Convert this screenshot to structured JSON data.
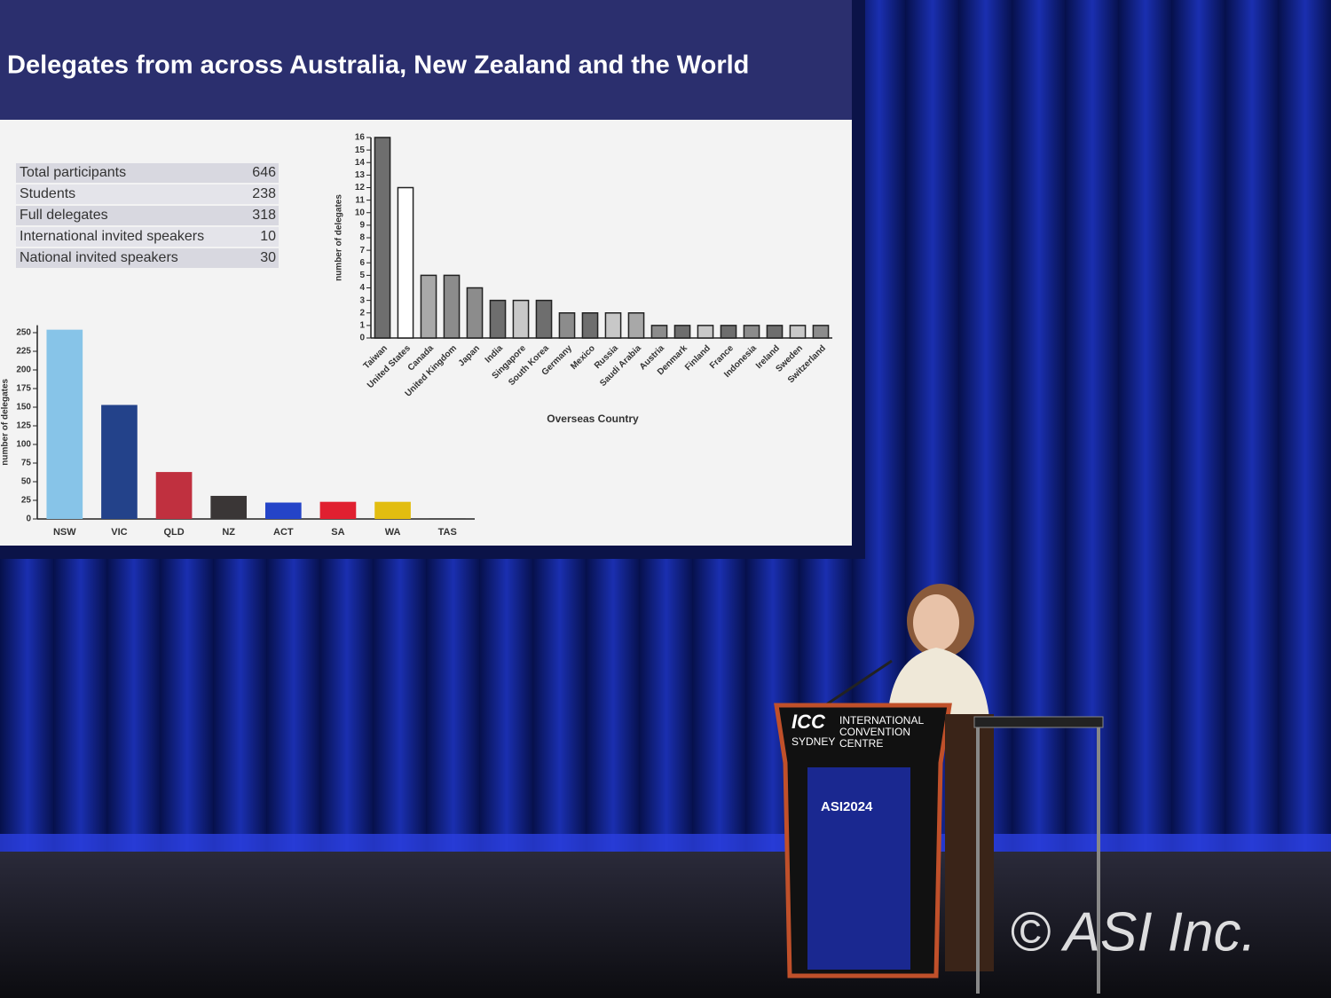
{
  "slide_title": "Delegates from across Australia, New Zealand and the World",
  "table": {
    "rows": [
      [
        "Total participants",
        "646"
      ],
      [
        "Students",
        "238"
      ],
      [
        "Full delegates",
        "318"
      ],
      [
        "International invited speakers",
        "10"
      ],
      [
        "National invited speakers",
        "30"
      ]
    ]
  },
  "chart_data": [
    {
      "type": "bar",
      "y_label": "number of delegates",
      "x_label": "Overseas Country",
      "categories": [
        "Taiwan",
        "United States",
        "Canada",
        "United Kingdom",
        "Japan",
        "India",
        "Singapore",
        "South Korea",
        "Germany",
        "Mexico",
        "Russia",
        "Saudi Arabia",
        "Austria",
        "Denmark",
        "Finland",
        "France",
        "Indonesia",
        "Ireland",
        "Sweden",
        "Switzerland"
      ],
      "values": [
        16,
        12,
        5,
        5,
        4,
        3,
        3,
        3,
        2,
        2,
        2,
        2,
        1,
        1,
        1,
        1,
        1,
        1,
        1,
        1
      ],
      "colors": [
        "#6e6e6e",
        "#ffffff",
        "#a8a8a8",
        "#8c8c8c",
        "#8c8c8c",
        "#6e6e6e",
        "#c8c8c8",
        "#6e6e6e",
        "#8c8c8c",
        "#6e6e6e",
        "#c8c8c8",
        "#a8a8a8",
        "#8c8c8c",
        "#6e6e6e",
        "#c8c8c8",
        "#6e6e6e",
        "#8c8c8c",
        "#6e6e6e",
        "#c8c8c8",
        "#8c8c8c"
      ],
      "ylim": [
        0,
        16
      ],
      "yticks": [
        0,
        1,
        2,
        3,
        4,
        5,
        6,
        7,
        8,
        9,
        10,
        11,
        12,
        13,
        14,
        15,
        16
      ]
    },
    {
      "type": "bar",
      "y_label": "number of delegates",
      "categories": [
        "NSW",
        "VIC",
        "QLD",
        "NZ",
        "ACT",
        "SA",
        "WA",
        "TAS"
      ],
      "values": [
        254,
        153,
        63,
        31,
        22,
        23,
        23,
        1
      ],
      "colors": [
        "#87c4e8",
        "#23428a",
        "#c0303f",
        "#3a3636",
        "#2444c8",
        "#e02030",
        "#e2bd10",
        "#444444"
      ],
      "ylim": [
        0,
        260
      ],
      "yticks": [
        0,
        25,
        50,
        75,
        100,
        125,
        150,
        175,
        200,
        225,
        250
      ]
    }
  ],
  "podium": {
    "brand": "ICC",
    "city": "SYDNEY",
    "name": "INTERNATIONAL CONVENTION CENTRE",
    "event": "ASI2024"
  },
  "watermark": "© ASI Inc."
}
